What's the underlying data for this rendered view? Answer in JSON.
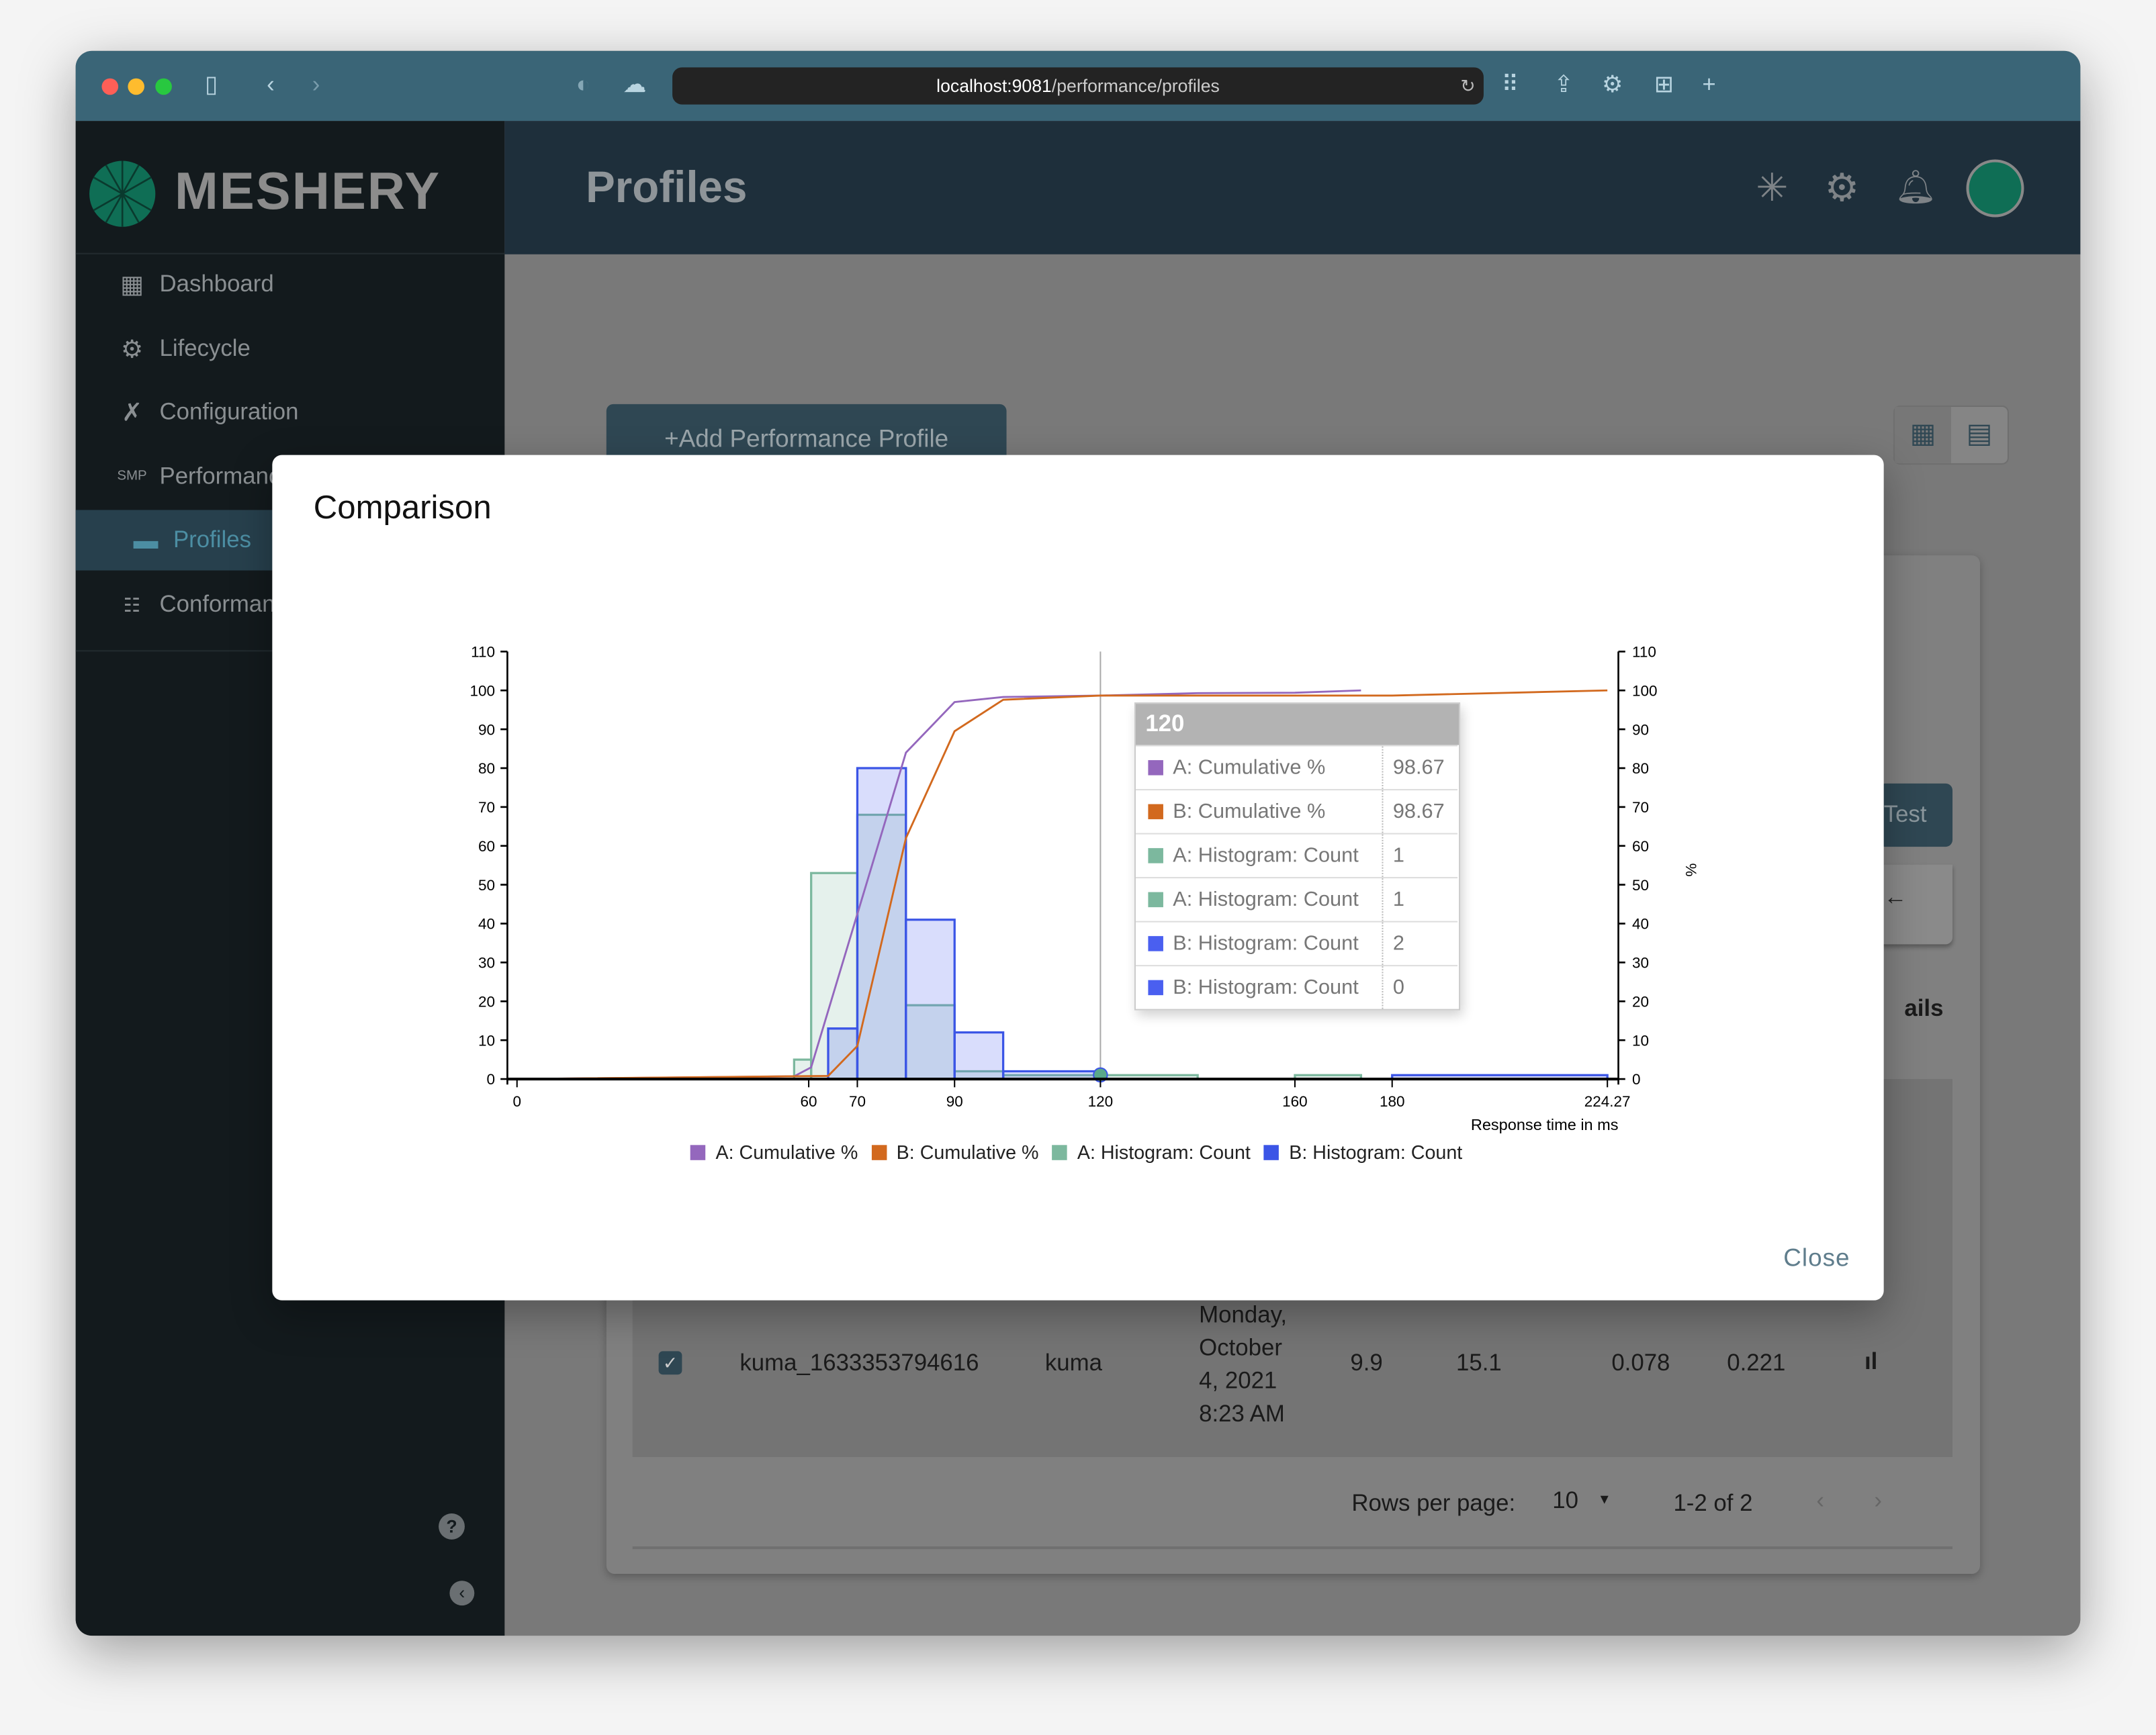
{
  "browser": {
    "url_host": "localhost:9081",
    "url_path": "/performance/profiles"
  },
  "app": {
    "brand": "MESHERY",
    "page_title": "Profiles"
  },
  "sidebar": {
    "items": [
      {
        "label": "Dashboard",
        "icon": "dashboard-icon"
      },
      {
        "label": "Lifecycle",
        "icon": "gears-icon"
      },
      {
        "label": "Configuration",
        "icon": "tools-icon"
      },
      {
        "label": "Performance",
        "icon": "smp-icon"
      },
      {
        "label": "Profiles",
        "icon": "profile-card-icon",
        "selected": true
      },
      {
        "label": "Conformance",
        "icon": "checklist-icon"
      }
    ]
  },
  "main": {
    "add_button": "Add Performance Profile",
    "add_icon": "+",
    "test_button": "Test",
    "details_partial": "ails",
    "table": {
      "rows": [
        {
          "checked": true,
          "name": "kuma_1633353794616",
          "mesh": "kuma",
          "date_lines": [
            "Monday,",
            "October",
            "4, 2021",
            "8:23 AM"
          ],
          "v1": "9.9",
          "v2": "15.1",
          "v3": "0.078",
          "v4": "0.221"
        }
      ]
    },
    "pagination": {
      "rows_per_page_label": "Rows per page:",
      "rows_per_page": "10",
      "range": "1-2 of 2"
    }
  },
  "modal": {
    "title": "Comparison",
    "close_label": "Close",
    "tooltip": {
      "title": "120",
      "rows": [
        {
          "label": "A: Cumulative %",
          "value": "98.67",
          "color": "#9467bd"
        },
        {
          "label": "B: Cumulative %",
          "value": "98.67",
          "color": "#d2691e"
        },
        {
          "label": "A: Histogram: Count",
          "value": "1",
          "color": "#7cb89e"
        },
        {
          "label": "A: Histogram: Count",
          "value": "1",
          "color": "#7cb89e"
        },
        {
          "label": "B: Histogram: Count",
          "value": "2",
          "color": "#4a5ff0"
        },
        {
          "label": "B: Histogram: Count",
          "value": "0",
          "color": "#4a5ff0"
        }
      ]
    }
  },
  "chart_data": {
    "type": "bar+line",
    "xlabel": "Response time in ms",
    "y2label": "%",
    "xlim": [
      0,
      224.27
    ],
    "ylim": [
      0,
      110
    ],
    "y2lim": [
      0,
      110
    ],
    "x_tick_labels": [
      "0",
      "60",
      "70",
      "90",
      "120",
      "160",
      "180",
      "224.27"
    ],
    "x_ticks": [
      0,
      60,
      70,
      90,
      120,
      160,
      180,
      224.27
    ],
    "y_ticks": [
      0,
      10,
      20,
      30,
      40,
      50,
      60,
      70,
      80,
      90,
      100,
      110
    ],
    "legend_position": "bottom",
    "crosshair_x": 120,
    "series": [
      {
        "name": "A: Cumulative %",
        "kind": "line",
        "color": "#9467bd",
        "points": [
          [
            0,
            0
          ],
          [
            57,
            0.7
          ],
          [
            60.5,
            3
          ],
          [
            80,
            84
          ],
          [
            90,
            97
          ],
          [
            100,
            98.3
          ],
          [
            120,
            98.67
          ],
          [
            140,
            99.3
          ],
          [
            160,
            99.4
          ],
          [
            173.6,
            100
          ]
        ]
      },
      {
        "name": "B: Cumulative %",
        "kind": "line",
        "color": "#d2691e",
        "points": [
          [
            0,
            0
          ],
          [
            64,
            0.8
          ],
          [
            70,
            8.5
          ],
          [
            80,
            62
          ],
          [
            90,
            89.5
          ],
          [
            100,
            97.6
          ],
          [
            120,
            98.67
          ],
          [
            180,
            98.67
          ],
          [
            224.27,
            100
          ]
        ]
      },
      {
        "name": "A: Histogram: Count",
        "kind": "histogram",
        "color": "#7cb89e",
        "fill": "rgba(124,184,158,0.2)",
        "bins": [
          [
            57,
            60.5,
            5
          ],
          [
            60.5,
            70,
            53
          ],
          [
            70,
            80,
            68
          ],
          [
            80,
            90,
            19
          ],
          [
            90,
            100,
            2
          ],
          [
            100,
            120,
            1
          ],
          [
            120,
            140,
            1
          ],
          [
            160,
            173.6,
            1
          ]
        ]
      },
      {
        "name": "B: Histogram: Count",
        "kind": "histogram",
        "color": "#3b55e6",
        "fill": "rgba(80,100,240,0.22)",
        "bins": [
          [
            64,
            70,
            13
          ],
          [
            70,
            80,
            80
          ],
          [
            80,
            90,
            41
          ],
          [
            90,
            100,
            12
          ],
          [
            100,
            120,
            2
          ],
          [
            180,
            224.27,
            1
          ]
        ]
      }
    ]
  }
}
